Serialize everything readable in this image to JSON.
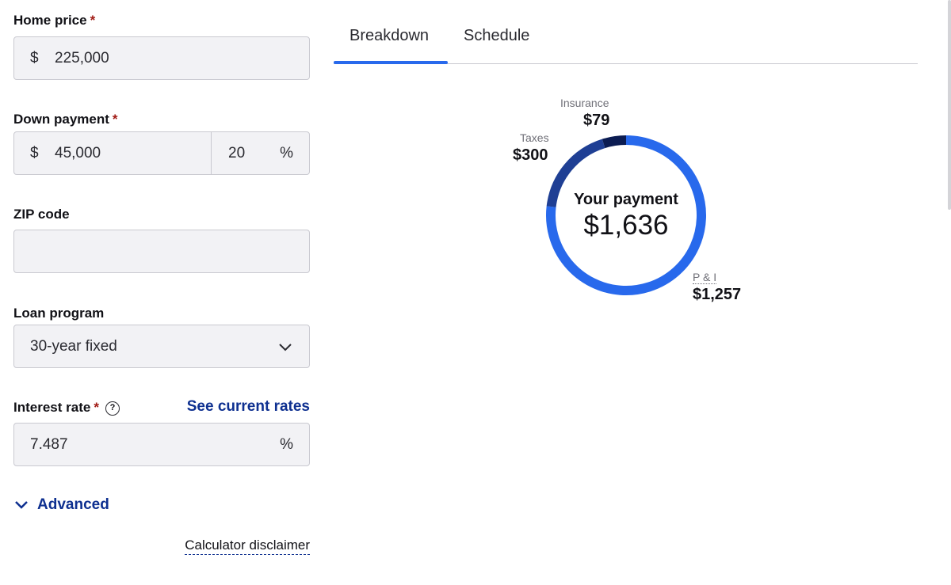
{
  "form": {
    "home_price": {
      "label": "Home price",
      "required": "*",
      "prefix": "$",
      "value": "225,000"
    },
    "down_payment": {
      "label": "Down payment",
      "required": "*",
      "prefix": "$",
      "value": "45,000",
      "percent_value": "20",
      "percent_suffix": "%"
    },
    "zip_code": {
      "label": "ZIP code",
      "value": ""
    },
    "loan_program": {
      "label": "Loan program",
      "selected": "30-year fixed"
    },
    "interest_rate": {
      "label": "Interest rate",
      "required": "*",
      "help": "?",
      "link": "See current rates",
      "value": "7.487",
      "suffix": "%"
    },
    "advanced": {
      "label": "Advanced"
    },
    "disclaimer": {
      "label": "Calculator disclaimer"
    }
  },
  "tabs": [
    {
      "label": "Breakdown",
      "active": true
    },
    {
      "label": "Schedule",
      "active": false
    }
  ],
  "breakdown": {
    "center_title": "Your payment",
    "total": "$1,636",
    "segments": [
      {
        "name": "P & I",
        "amount": "$1,257",
        "value": 1257,
        "color": "#2869ec"
      },
      {
        "name": "Taxes",
        "amount": "$300",
        "value": 300,
        "color": "#1f3f94"
      },
      {
        "name": "Insurance",
        "amount": "$79",
        "value": 79,
        "color": "#0b1c52"
      }
    ]
  },
  "colors": {
    "accent": "#2869ec",
    "link": "#0e3090",
    "required": "#a11b15",
    "input_bg": "#f2f2f5"
  }
}
